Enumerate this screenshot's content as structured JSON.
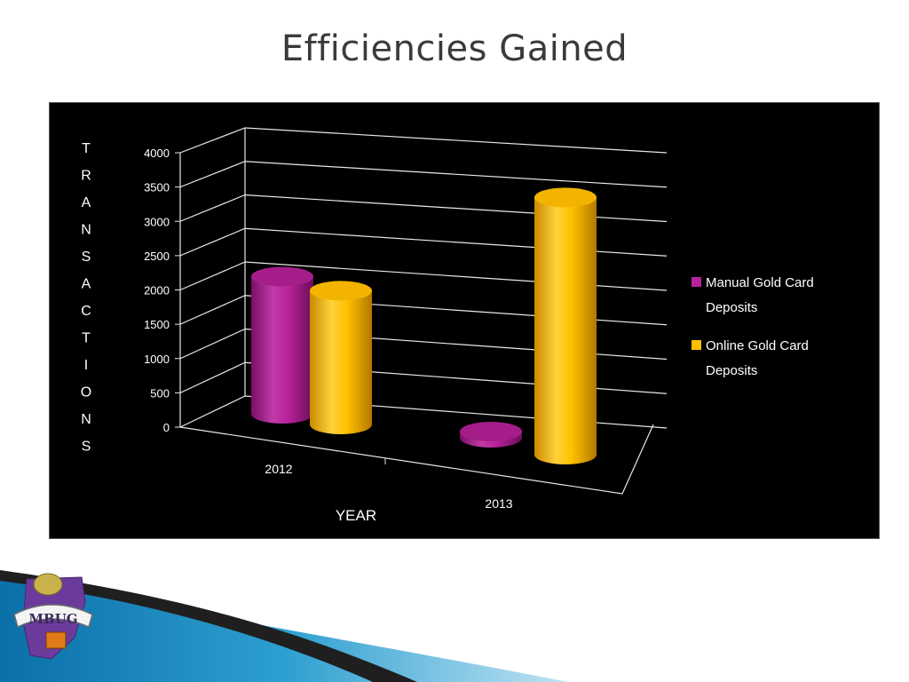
{
  "slide": {
    "title": "Efficiencies Gained"
  },
  "logo": {
    "text": "MBUG"
  },
  "colors": {
    "background": "#000000",
    "grid": "#e8e8e8",
    "text": "#ffffff",
    "manual": "#b8229a",
    "online": "#ffc000"
  },
  "chart_data": {
    "type": "bar",
    "style": "3d-cylinder",
    "categories": [
      "2012",
      "2013"
    ],
    "series": [
      {
        "name": "Manual Gold Card Deposits",
        "values": [
          2000,
          0
        ],
        "color": "#b8229a"
      },
      {
        "name": "Online Gold Card Deposits",
        "values": [
          1950,
          3750
        ],
        "color": "#ffc000"
      }
    ],
    "xlabel": "YEAR",
    "ylabel": "TRANSACTIONS",
    "ylim": [
      0,
      4000
    ],
    "yticks": [
      "0",
      "500",
      "1000",
      "1500",
      "2000",
      "2500",
      "3000",
      "3500",
      "4000"
    ],
    "grid": true,
    "legend_position": "right"
  }
}
